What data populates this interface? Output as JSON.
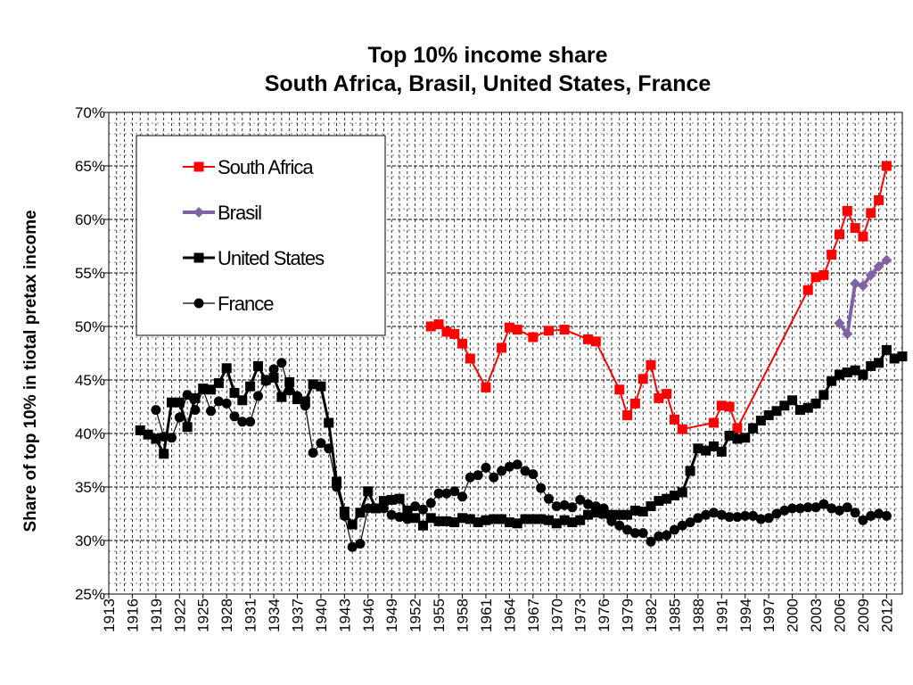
{
  "chart_data": {
    "type": "line",
    "title": "Top 10% income share",
    "subtitle": "South Africa, Brasil, United States, France",
    "ylabel": "Share of top 10% in tiotal pretax income",
    "xlim": [
      1913,
      2014
    ],
    "xticks": [
      1913,
      1916,
      1919,
      1922,
      1925,
      1928,
      1931,
      1934,
      1937,
      1940,
      1943,
      1946,
      1949,
      1952,
      1955,
      1958,
      1961,
      1964,
      1967,
      1970,
      1973,
      1976,
      1979,
      1982,
      1985,
      1988,
      1991,
      1994,
      1997,
      2000,
      2003,
      2006,
      2009,
      2012
    ],
    "ylim": [
      25,
      70
    ],
    "yticks": [
      {
        "value": 25,
        "label": "25%"
      },
      {
        "value": 30,
        "label": "30%"
      },
      {
        "value": 35,
        "label": "35%"
      },
      {
        "value": 40,
        "label": "40%"
      },
      {
        "value": 45,
        "label": "45%"
      },
      {
        "value": 50,
        "label": "50%"
      },
      {
        "value": 55,
        "label": "55%"
      },
      {
        "value": 60,
        "label": "60%"
      },
      {
        "value": 65,
        "label": "65%"
      },
      {
        "value": 70,
        "label": "70%"
      }
    ],
    "grid": true,
    "minor_grid": true,
    "legend": "upper left",
    "series": [
      {
        "name": "South Africa",
        "color": "#ff0000",
        "marker": "square",
        "line_width": 2,
        "x": [
          1954,
          1955,
          1956,
          1957,
          1958,
          1959,
          1961,
          1963,
          1964,
          1965,
          1967,
          1969,
          1971,
          1974,
          1975,
          1978,
          1979,
          1980,
          1981,
          1982,
          1983,
          1984,
          1985,
          1986,
          1990,
          1991,
          1992,
          1993,
          2002,
          2003,
          2004,
          2005,
          2006,
          2007,
          2008,
          2009,
          2010,
          2011,
          2012
        ],
        "values": [
          50.0,
          50.2,
          49.5,
          49.3,
          48.4,
          47.0,
          44.3,
          48.0,
          49.9,
          49.7,
          49.0,
          49.6,
          49.7,
          48.8,
          48.6,
          44.1,
          41.7,
          42.8,
          45.1,
          46.4,
          43.3,
          43.7,
          41.3,
          40.4,
          41.0,
          42.6,
          42.5,
          40.5,
          53.4,
          54.6,
          54.8,
          56.7,
          58.6,
          60.8,
          59.2,
          58.4,
          60.6,
          61.8,
          65.0
        ]
      },
      {
        "name": "Brasil",
        "color": "#7f62a3",
        "marker": "diamond",
        "line_width": 4,
        "x": [
          2006,
          2007,
          2008,
          2009,
          2010,
          2011,
          2012
        ],
        "values": [
          50.3,
          49.3,
          54.0,
          53.8,
          54.8,
          55.6,
          56.2
        ]
      },
      {
        "name": "United States",
        "color": "#000000",
        "marker": "square",
        "line_width": 3,
        "x": [
          1917,
          1918,
          1919,
          1920,
          1921,
          1922,
          1923,
          1924,
          1925,
          1926,
          1927,
          1928,
          1929,
          1930,
          1931,
          1932,
          1933,
          1934,
          1935,
          1936,
          1937,
          1938,
          1939,
          1940,
          1941,
          1942,
          1943,
          1944,
          1945,
          1946,
          1947,
          1948,
          1949,
          1950,
          1951,
          1952,
          1953,
          1954,
          1955,
          1956,
          1957,
          1958,
          1959,
          1960,
          1961,
          1962,
          1963,
          1964,
          1965,
          1966,
          1967,
          1968,
          1969,
          1970,
          1971,
          1972,
          1973,
          1974,
          1975,
          1976,
          1977,
          1978,
          1979,
          1980,
          1981,
          1982,
          1983,
          1984,
          1985,
          1986,
          1987,
          1988,
          1989,
          1990,
          1991,
          1992,
          1993,
          1994,
          1995,
          1996,
          1997,
          1998,
          1999,
          2000,
          2001,
          2002,
          2003,
          2004,
          2005,
          2006,
          2007,
          2008,
          2009,
          2010,
          2011,
          2012,
          2013,
          2014
        ],
        "values": [
          40.3,
          39.9,
          39.5,
          38.1,
          42.9,
          42.9,
          40.6,
          43.3,
          44.2,
          44.1,
          44.7,
          46.1,
          43.8,
          43.1,
          44.4,
          46.3,
          45.0,
          45.2,
          43.4,
          44.8,
          43.2,
          43.0,
          44.6,
          44.4,
          41.0,
          35.5,
          32.7,
          31.5,
          32.6,
          34.6,
          33.0,
          33.7,
          33.8,
          33.9,
          32.8,
          32.1,
          31.4,
          32.1,
          31.8,
          31.8,
          31.7,
          32.1,
          32.0,
          31.7,
          31.9,
          32.0,
          32.0,
          31.7,
          31.6,
          32.0,
          32.0,
          32.0,
          31.9,
          31.6,
          31.9,
          31.7,
          31.9,
          32.4,
          32.6,
          32.5,
          32.4,
          32.4,
          32.4,
          32.8,
          32.7,
          33.2,
          33.7,
          33.9,
          34.2,
          34.5,
          36.5,
          38.6,
          38.4,
          38.8,
          38.3,
          39.8,
          39.5,
          39.6,
          40.5,
          41.2,
          41.7,
          42.1,
          42.6,
          43.1,
          42.2,
          42.4,
          42.8,
          43.6,
          44.9,
          45.5,
          45.7,
          45.9,
          45.5,
          46.3,
          46.6,
          47.8,
          47.0,
          47.2
        ]
      },
      {
        "name": "France",
        "color": "#000000",
        "marker": "circle",
        "line_width": 1.2,
        "x": [
          1919,
          1920,
          1921,
          1922,
          1923,
          1924,
          1925,
          1926,
          1927,
          1928,
          1929,
          1930,
          1931,
          1932,
          1933,
          1934,
          1935,
          1936,
          1937,
          1938,
          1939,
          1940,
          1941,
          1942,
          1943,
          1944,
          1945,
          1946,
          1947,
          1948,
          1949,
          1950,
          1951,
          1952,
          1953,
          1954,
          1955,
          1956,
          1957,
          1958,
          1959,
          1960,
          1961,
          1962,
          1963,
          1964,
          1965,
          1966,
          1967,
          1968,
          1969,
          1970,
          1971,
          1972,
          1973,
          1974,
          1975,
          1976,
          1977,
          1978,
          1979,
          1980,
          1981,
          1982,
          1983,
          1984,
          1985,
          1986,
          1987,
          1988,
          1989,
          1990,
          1991,
          1992,
          1993,
          1994,
          1995,
          1996,
          1997,
          1998,
          1999,
          2000,
          2001,
          2002,
          2003,
          2004,
          2005,
          2006,
          2007,
          2008,
          2009,
          2010,
          2011,
          2012
        ],
        "values": [
          42.2,
          39.7,
          39.6,
          41.5,
          43.6,
          42.2,
          44.1,
          42.1,
          43.0,
          42.8,
          41.6,
          41.1,
          41.1,
          43.5,
          44.9,
          46.0,
          46.6,
          44.0,
          43.5,
          42.6,
          38.2,
          39.1,
          38.6,
          35.0,
          32.3,
          29.4,
          29.7,
          33.0,
          33.0,
          33.0,
          32.4,
          32.2,
          32.0,
          33.2,
          32.9,
          33.5,
          34.4,
          34.4,
          34.6,
          34.1,
          35.9,
          36.1,
          36.8,
          35.9,
          36.5,
          36.9,
          37.1,
          36.5,
          36.2,
          34.9,
          33.9,
          33.2,
          33.3,
          33.1,
          33.8,
          33.4,
          33.2,
          33.0,
          31.8,
          31.4,
          31.0,
          30.7,
          30.7,
          29.9,
          30.4,
          30.5,
          31.0,
          31.4,
          31.7,
          32.1,
          32.4,
          32.6,
          32.4,
          32.2,
          32.2,
          32.3,
          32.3,
          32.0,
          32.1,
          32.5,
          32.8,
          33.0,
          33.0,
          33.1,
          33.1,
          33.4,
          33.0,
          32.8,
          33.1,
          32.6,
          31.9,
          32.3,
          32.5,
          32.3
        ]
      }
    ]
  }
}
